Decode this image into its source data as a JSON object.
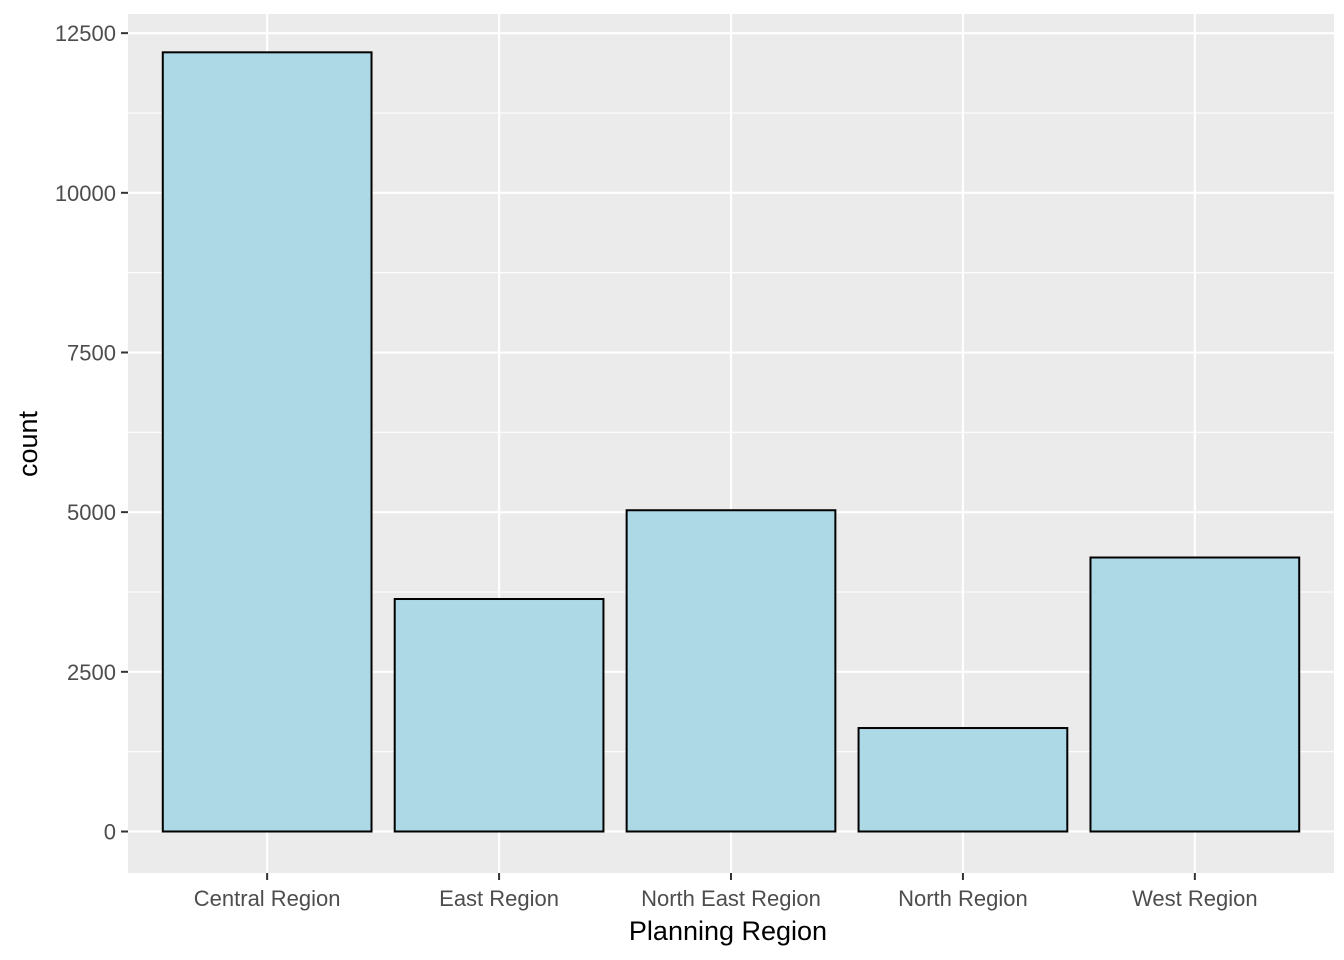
{
  "chart_data": {
    "type": "bar",
    "categories": [
      "Central Region",
      "East Region",
      "North East Region",
      "North Region",
      "West Region"
    ],
    "values": [
      12200,
      3640,
      5030,
      1620,
      4290
    ],
    "xlabel": "Planning Region",
    "ylabel": "count",
    "ylim": [
      -650,
      12800
    ],
    "yticks": [
      0,
      2500,
      5000,
      7500,
      10000,
      12500
    ],
    "grid": true,
    "colors": {
      "panel": "#ebebeb",
      "grid_major": "#ffffff",
      "bar_fill": "#add8e6",
      "bar_stroke": "#000000"
    }
  }
}
